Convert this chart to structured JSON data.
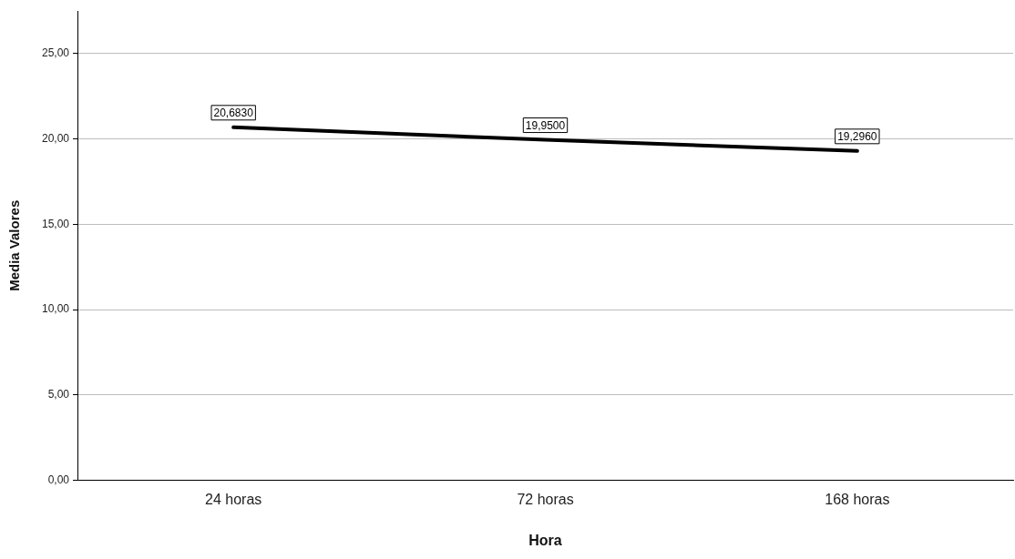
{
  "chart_data": {
    "type": "line",
    "xlabel": "Hora",
    "ylabel": "Media Valores",
    "categories": [
      "24 horas",
      "72 horas",
      "168 horas"
    ],
    "series": [
      {
        "color": "#000000",
        "values": [
          20.683,
          19.95,
          19.296
        ],
        "value_labels": [
          "20,6830",
          "19,9500",
          "19,2960"
        ]
      }
    ],
    "ylim": [
      0,
      27.5
    ],
    "yticks": [
      {
        "value": 0,
        "label": "0,00"
      },
      {
        "value": 5,
        "label": "5,00"
      },
      {
        "value": 10,
        "label": "10,00"
      },
      {
        "value": 15,
        "label": "15,00"
      },
      {
        "value": 20,
        "label": "20,00"
      },
      {
        "value": 25,
        "label": "25,00"
      }
    ],
    "grid": "y",
    "legend": false,
    "marker": "none",
    "line_style": "solid"
  }
}
